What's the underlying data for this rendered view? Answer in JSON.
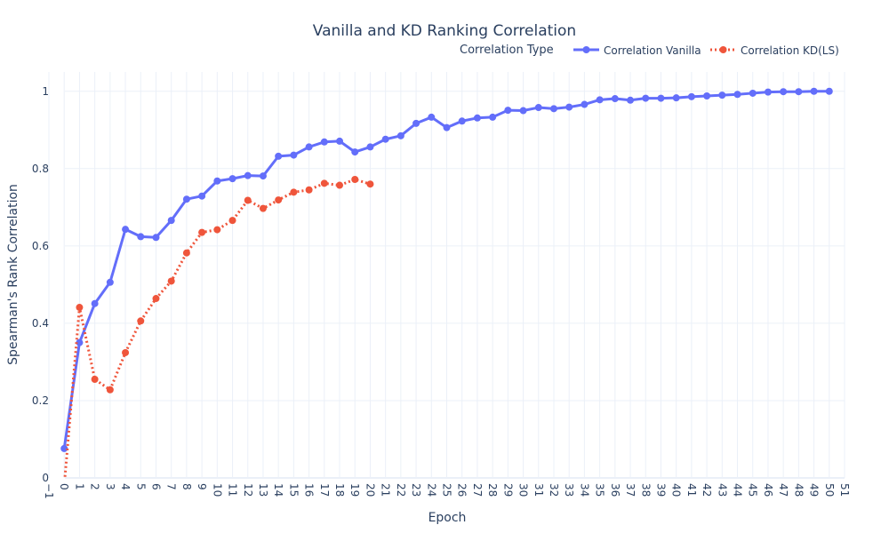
{
  "chart_data": {
    "type": "line",
    "title": "Vanilla and KD Ranking Correlation",
    "xlabel": "Epoch",
    "ylabel": "Spearman's Rank Correlation",
    "xlim": [
      -1,
      51
    ],
    "ylim": [
      0,
      1.05
    ],
    "x_ticks": [
      -1,
      0,
      1,
      2,
      3,
      4,
      5,
      6,
      7,
      8,
      9,
      10,
      11,
      12,
      13,
      14,
      15,
      16,
      17,
      18,
      19,
      20,
      21,
      22,
      23,
      24,
      25,
      26,
      27,
      28,
      29,
      30,
      31,
      32,
      33,
      34,
      35,
      36,
      37,
      38,
      39,
      40,
      41,
      42,
      43,
      44,
      45,
      46,
      47,
      48,
      49,
      50,
      51
    ],
    "x_tick_labels": [
      "−1",
      "0",
      "1",
      "2",
      "3",
      "4",
      "5",
      "6",
      "7",
      "8",
      "9",
      "10",
      "11",
      "12",
      "13",
      "14",
      "15",
      "16",
      "17",
      "18",
      "19",
      "20",
      "21",
      "22",
      "23",
      "24",
      "25",
      "26",
      "27",
      "28",
      "29",
      "30",
      "31",
      "32",
      "33",
      "34",
      "35",
      "36",
      "37",
      "38",
      "39",
      "40",
      "41",
      "42",
      "43",
      "44",
      "45",
      "46",
      "47",
      "48",
      "49",
      "50",
      "51"
    ],
    "y_ticks": [
      0,
      0.2,
      0.4,
      0.6,
      0.8,
      1
    ],
    "y_tick_labels": [
      "0",
      "0.2",
      "0.4",
      "0.6",
      "0.8",
      "1"
    ],
    "grid": true,
    "legend_title": "Correlation Type",
    "legend_position": "top-right",
    "series": [
      {
        "name": "Correlation Vanilla",
        "color": "#636efa",
        "dash": "solid",
        "x": [
          0,
          1,
          2,
          3,
          4,
          5,
          6,
          7,
          8,
          9,
          10,
          11,
          12,
          13,
          14,
          15,
          16,
          17,
          18,
          19,
          20,
          21,
          22,
          23,
          24,
          25,
          26,
          27,
          28,
          29,
          30,
          31,
          32,
          33,
          34,
          35,
          36,
          37,
          38,
          39,
          40,
          41,
          42,
          43,
          44,
          45,
          46,
          47,
          48,
          49,
          50
        ],
        "values": [
          0.076,
          0.35,
          0.451,
          0.506,
          0.643,
          0.624,
          0.622,
          0.666,
          0.721,
          0.729,
          0.768,
          0.774,
          0.782,
          0.781,
          0.832,
          0.835,
          0.856,
          0.869,
          0.871,
          0.843,
          0.856,
          0.876,
          0.885,
          0.917,
          0.933,
          0.906,
          0.923,
          0.931,
          0.933,
          0.951,
          0.95,
          0.958,
          0.955,
          0.959,
          0.966,
          0.978,
          0.981,
          0.977,
          0.982,
          0.982,
          0.983,
          0.986,
          0.988,
          0.99,
          0.992,
          0.995,
          0.998,
          0.999,
          0.999,
          1.0,
          1.0
        ]
      },
      {
        "name": "Correlation KD(LS)",
        "color": "#ef553b",
        "dash": "dot",
        "x": [
          0,
          1,
          2,
          3,
          4,
          5,
          6,
          7,
          8,
          9,
          10,
          11,
          12,
          13,
          14,
          15,
          16,
          17,
          18,
          19,
          20
        ],
        "values": [
          -0.02,
          0.441,
          0.255,
          0.228,
          0.324,
          0.406,
          0.464,
          0.509,
          0.582,
          0.635,
          0.642,
          0.666,
          0.718,
          0.697,
          0.719,
          0.739,
          0.745,
          0.762,
          0.757,
          0.772,
          0.76
        ]
      }
    ]
  }
}
